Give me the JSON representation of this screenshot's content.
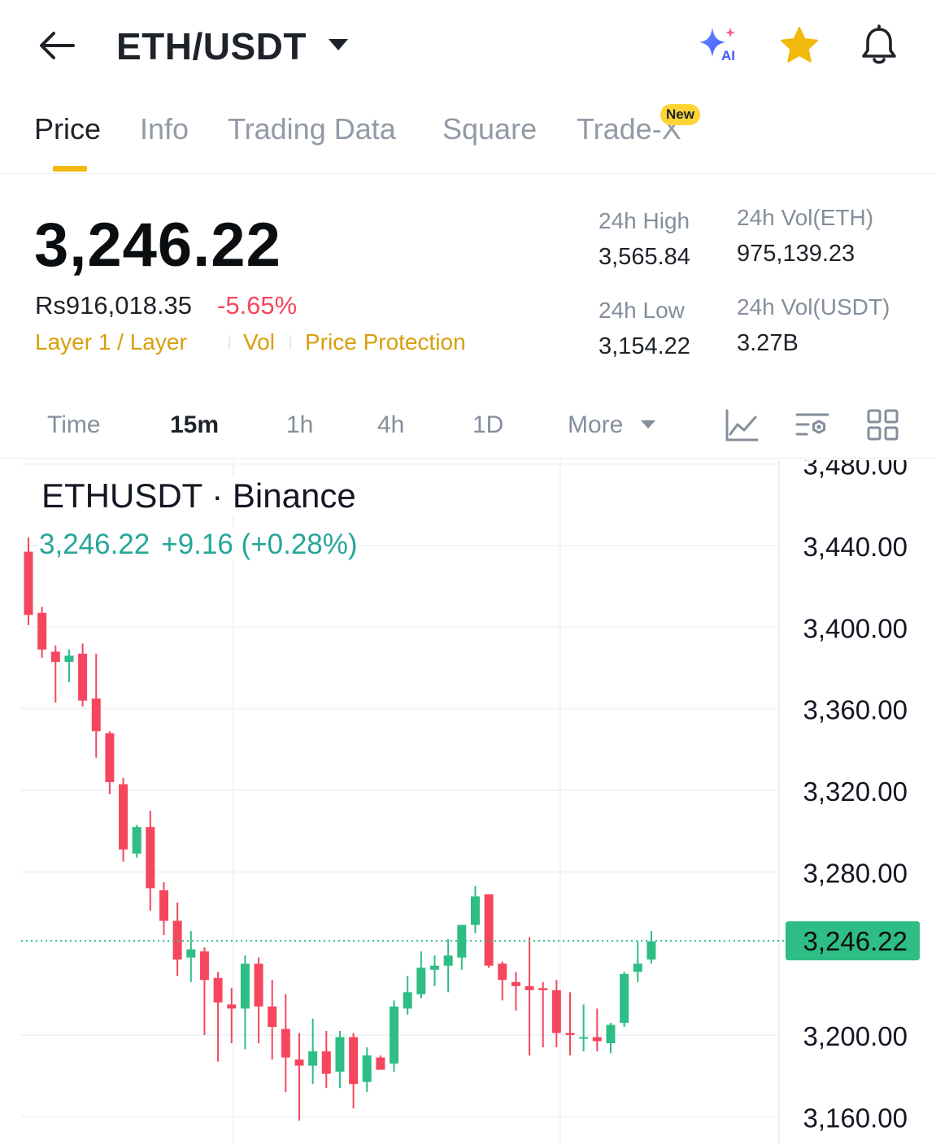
{
  "header": {
    "pair": "ETH/USDT",
    "icons": [
      "back-arrow-icon",
      "caret-down-icon",
      "ai-sparkle-icon",
      "star-icon",
      "bell-icon"
    ],
    "ai_label": "AI",
    "favorite_color": "#f0b90b"
  },
  "tabs": [
    {
      "label": "Price",
      "active": true
    },
    {
      "label": "Info",
      "active": false
    },
    {
      "label": "Trading Data",
      "active": false
    },
    {
      "label": "Square",
      "active": false
    },
    {
      "label": "Trade-X",
      "active": false,
      "badge": "New"
    }
  ],
  "price": {
    "last": "3,246.22",
    "fiat": "Rs916,018.35",
    "change_pct": "-5.65%",
    "tags": [
      "Layer 1 / Layer",
      "Vol",
      "Price Protection"
    ]
  },
  "stats": {
    "high_label": "24h High",
    "high_value": "3,565.84",
    "low_label": "24h Low",
    "low_value": "3,154.22",
    "vol_base_label": "24h Vol(ETH)",
    "vol_base_value": "975,139.23",
    "vol_quote_label": "24h Vol(USDT)",
    "vol_quote_value": "3.27B"
  },
  "intervals": {
    "items": [
      {
        "label": "Time",
        "active": false
      },
      {
        "label": "15m",
        "active": true
      },
      {
        "label": "1h",
        "active": false
      },
      {
        "label": "4h",
        "active": false
      },
      {
        "label": "1D",
        "active": false
      },
      {
        "label": "More",
        "active": false
      }
    ],
    "tool_icons": [
      "indicator-line-icon",
      "chart-settings-icon",
      "grid-layout-icon"
    ]
  },
  "colors": {
    "up": "#2ebd85",
    "down": "#f6465d",
    "accent": "#f0b90b",
    "last_price_label_bg": "#2ebd85"
  },
  "chart_data": {
    "type": "candlestick",
    "title": "ETHUSDT · Binance",
    "legend_price": "3,246.22",
    "legend_change": "+9.16 (+0.28%)",
    "last_price_label": "3,246.22",
    "last_price": 3246.22,
    "yticks": [
      "3,480.00",
      "3,440.00",
      "3,400.00",
      "3,360.00",
      "3,320.00",
      "3,280.00",
      "3,200.00",
      "3,160.00"
    ],
    "ytick_values": [
      3480,
      3440,
      3400,
      3360,
      3320,
      3280,
      3200,
      3160
    ],
    "ylim": [
      3154,
      3481
    ],
    "grid": true,
    "candles": [
      {
        "o": 3437,
        "h": 3444,
        "l": 3401,
        "c": 3406
      },
      {
        "o": 3407,
        "h": 3410,
        "l": 3385,
        "c": 3389
      },
      {
        "o": 3388,
        "h": 3391,
        "l": 3363,
        "c": 3383
      },
      {
        "o": 3383,
        "h": 3389,
        "l": 3373,
        "c": 3386
      },
      {
        "o": 3387,
        "h": 3392,
        "l": 3361,
        "c": 3364
      },
      {
        "o": 3365,
        "h": 3387,
        "l": 3336,
        "c": 3349
      },
      {
        "o": 3348,
        "h": 3349,
        "l": 3318,
        "c": 3324
      },
      {
        "o": 3323,
        "h": 3326,
        "l": 3285,
        "c": 3291
      },
      {
        "o": 3289,
        "h": 3303,
        "l": 3287,
        "c": 3302
      },
      {
        "o": 3302,
        "h": 3310,
        "l": 3261,
        "c": 3272
      },
      {
        "o": 3271,
        "h": 3275,
        "l": 3249,
        "c": 3256
      },
      {
        "o": 3256,
        "h": 3265,
        "l": 3229,
        "c": 3237
      },
      {
        "o": 3238,
        "h": 3251,
        "l": 3226,
        "c": 3242
      },
      {
        "o": 3241,
        "h": 3243,
        "l": 3200,
        "c": 3227
      },
      {
        "o": 3228,
        "h": 3231,
        "l": 3187,
        "c": 3216
      },
      {
        "o": 3215,
        "h": 3223,
        "l": 3196,
        "c": 3213
      },
      {
        "o": 3213,
        "h": 3239,
        "l": 3193,
        "c": 3235
      },
      {
        "o": 3235,
        "h": 3238,
        "l": 3196,
        "c": 3214
      },
      {
        "o": 3214,
        "h": 3227,
        "l": 3188,
        "c": 3204
      },
      {
        "o": 3203,
        "h": 3220,
        "l": 3172,
        "c": 3189
      },
      {
        "o": 3188,
        "h": 3201,
        "l": 3158,
        "c": 3185
      },
      {
        "o": 3185,
        "h": 3208,
        "l": 3176,
        "c": 3192
      },
      {
        "o": 3192,
        "h": 3202,
        "l": 3174,
        "c": 3181
      },
      {
        "o": 3182,
        "h": 3202,
        "l": 3174,
        "c": 3199
      },
      {
        "o": 3199,
        "h": 3201,
        "l": 3164,
        "c": 3176
      },
      {
        "o": 3177,
        "h": 3194,
        "l": 3172,
        "c": 3190
      },
      {
        "o": 3189,
        "h": 3190,
        "l": 3183,
        "c": 3183
      },
      {
        "o": 3186,
        "h": 3217,
        "l": 3182,
        "c": 3214
      },
      {
        "o": 3213,
        "h": 3229,
        "l": 3210,
        "c": 3221
      },
      {
        "o": 3220,
        "h": 3241,
        "l": 3218,
        "c": 3233
      },
      {
        "o": 3232,
        "h": 3239,
        "l": 3224,
        "c": 3234
      },
      {
        "o": 3234,
        "h": 3247,
        "l": 3221,
        "c": 3239
      },
      {
        "o": 3238,
        "h": 3254,
        "l": 3232,
        "c": 3254
      },
      {
        "o": 3254,
        "h": 3273,
        "l": 3250,
        "c": 3268
      },
      {
        "o": 3269,
        "h": 3269,
        "l": 3233,
        "c": 3234
      },
      {
        "o": 3235,
        "h": 3236,
        "l": 3217,
        "c": 3227
      },
      {
        "o": 3226,
        "h": 3231,
        "l": 3212,
        "c": 3224
      },
      {
        "o": 3224,
        "h": 3248,
        "l": 3190,
        "c": 3222
      },
      {
        "o": 3223,
        "h": 3226,
        "l": 3194,
        "c": 3222
      },
      {
        "o": 3222,
        "h": 3227,
        "l": 3194,
        "c": 3201
      },
      {
        "o": 3201,
        "h": 3221,
        "l": 3190,
        "c": 3200
      },
      {
        "o": 3199,
        "h": 3215,
        "l": 3192,
        "c": 3199
      },
      {
        "o": 3199,
        "h": 3213,
        "l": 3192,
        "c": 3197
      },
      {
        "o": 3196,
        "h": 3206,
        "l": 3191,
        "c": 3205
      },
      {
        "o": 3206,
        "h": 3231,
        "l": 3204,
        "c": 3230
      },
      {
        "o": 3231,
        "h": 3246,
        "l": 3226,
        "c": 3235
      },
      {
        "o": 3237,
        "h": 3251,
        "l": 3235,
        "c": 3246
      }
    ]
  }
}
